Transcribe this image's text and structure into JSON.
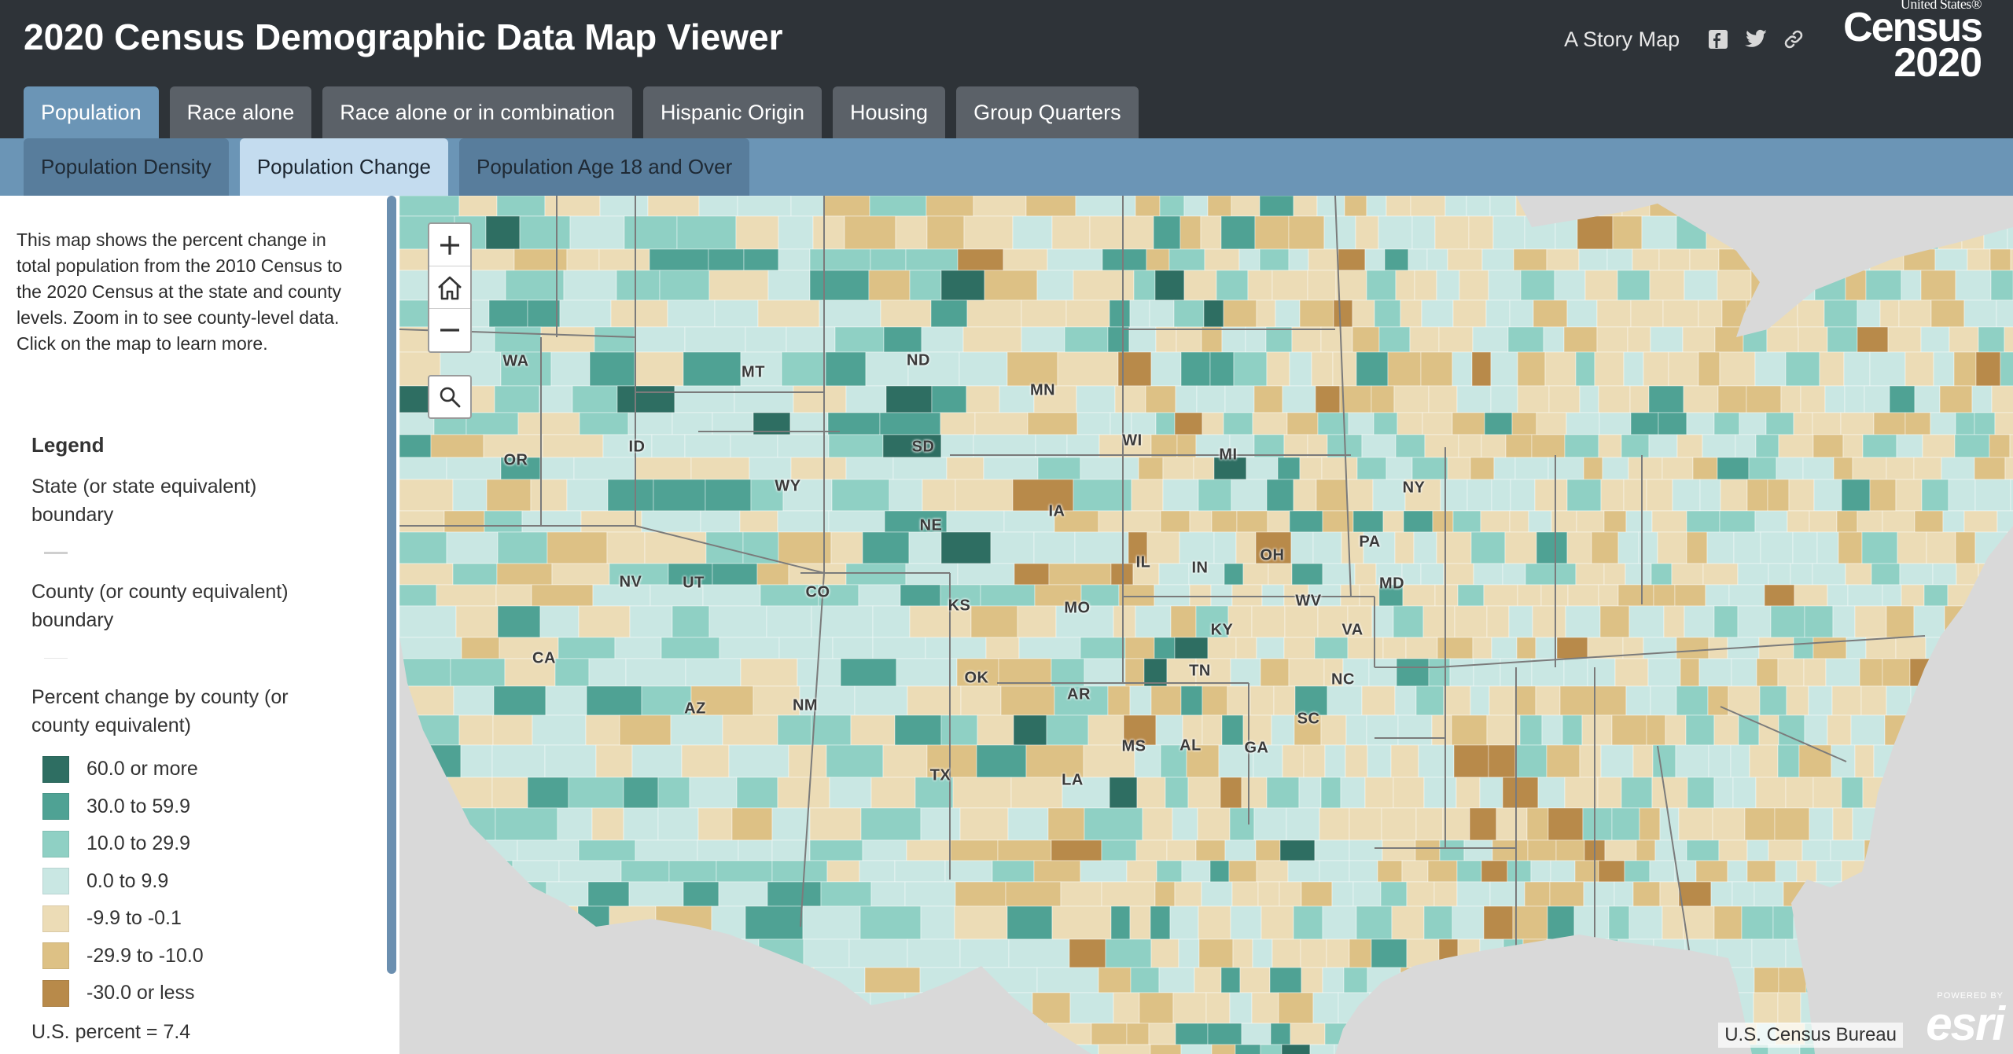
{
  "header": {
    "title": "2020 Census Demographic Data Map Viewer",
    "story_label": "A Story Map",
    "logo": {
      "top": "United States®",
      "main": "Census",
      "year": "2020"
    }
  },
  "main_tabs": [
    {
      "label": "Population",
      "active": true
    },
    {
      "label": "Race alone",
      "active": false
    },
    {
      "label": "Race alone or in combination",
      "active": false
    },
    {
      "label": "Hispanic Origin",
      "active": false
    },
    {
      "label": "Housing",
      "active": false
    },
    {
      "label": "Group Quarters",
      "active": false
    }
  ],
  "sub_tabs": [
    {
      "label": "Population Density",
      "active": false
    },
    {
      "label": "Population Change",
      "active": true
    },
    {
      "label": "Population Age 18 and Over",
      "active": false
    }
  ],
  "panel": {
    "description": "This map shows the percent change in total population from the 2010 Census to the 2020 Census at the state and county levels. Zoom in to see county-level data. Click on the map to learn more.",
    "legend_title": "Legend",
    "state_boundary": "State (or state equivalent) boundary",
    "county_boundary": "County (or county equivalent) boundary",
    "percent_title": "Percent change by county (or county equivalent)",
    "items": [
      {
        "label": "60.0 or more",
        "color": "#2e6e62"
      },
      {
        "label": "30.0 to 59.9",
        "color": "#4fa294"
      },
      {
        "label": "10.0 to 29.9",
        "color": "#8fd0c4"
      },
      {
        "label": "0.0 to 9.9",
        "color": "#c9e7e3"
      },
      {
        "label": "-9.9 to -0.1",
        "color": "#ecdcb6"
      },
      {
        "label": "-29.9 to -10.0",
        "color": "#ddc185"
      },
      {
        "label": "-30.0 or less",
        "color": "#b88a4a"
      }
    ],
    "us_percent": "U.S. percent = 7.4"
  },
  "map": {
    "state_labels": [
      "WA",
      "OR",
      "CA",
      "ID",
      "NV",
      "MT",
      "WY",
      "UT",
      "AZ",
      "CO",
      "NM",
      "ND",
      "SD",
      "NE",
      "KS",
      "OK",
      "TX",
      "MN",
      "IA",
      "MO",
      "AR",
      "LA",
      "WI",
      "IL",
      "MI",
      "IN",
      "OH",
      "KY",
      "TN",
      "MS",
      "AL",
      "GA",
      "SC",
      "NC",
      "VA",
      "WV",
      "PA",
      "NY",
      "MD"
    ],
    "attribution": "U.S. Census Bureau",
    "esri_powered": "POWERED BY",
    "esri_logo": "esri"
  }
}
